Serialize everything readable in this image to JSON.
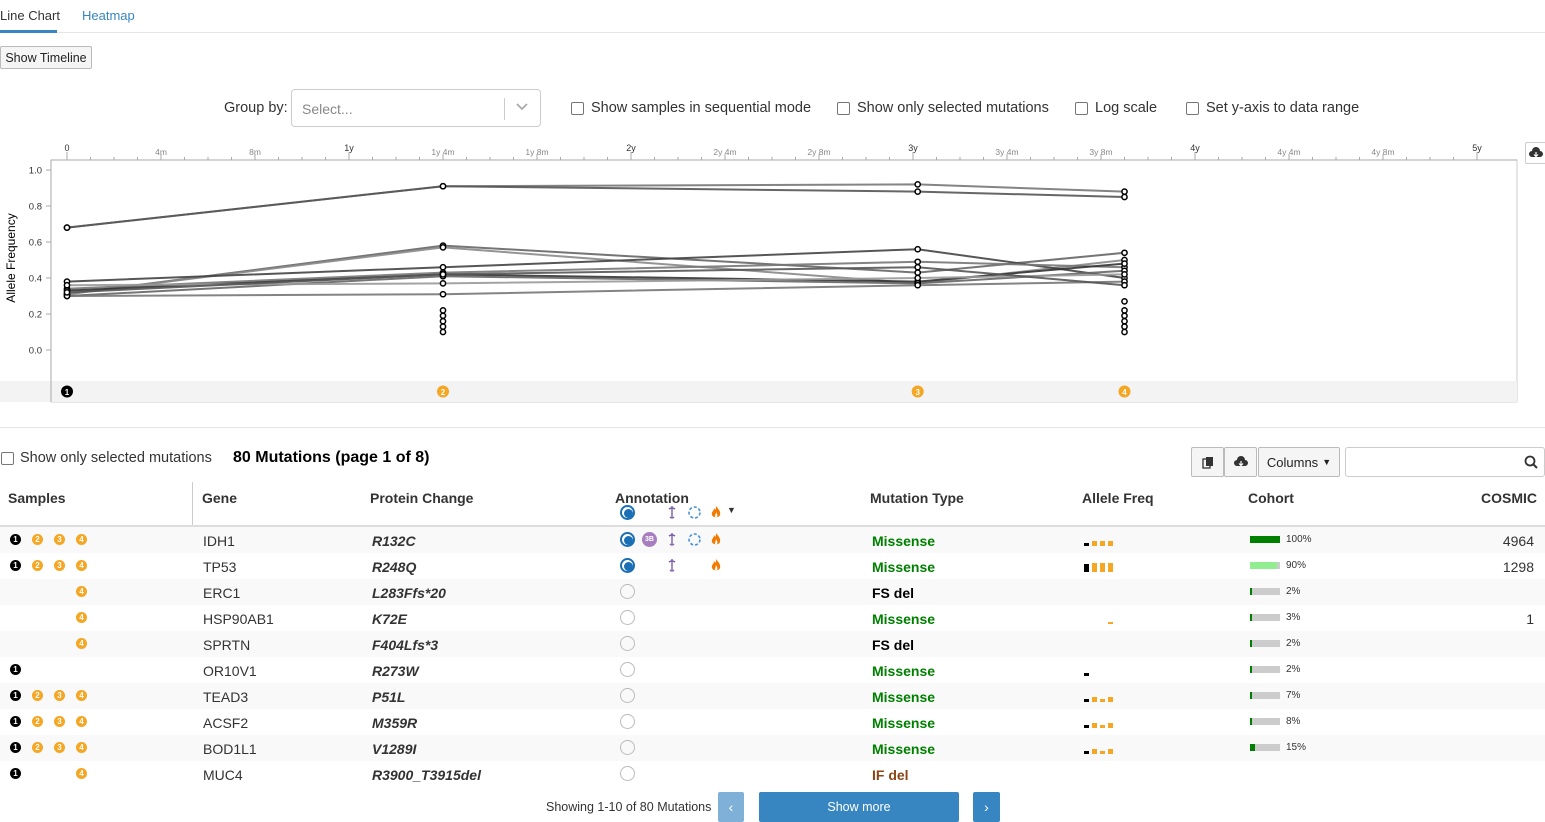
{
  "tabs": {
    "line_chart": "Line Chart",
    "heatmap": "Heatmap"
  },
  "toolbar": {
    "show_timeline": "Show Timeline"
  },
  "controls": {
    "group_by_label": "Group by:",
    "group_by_placeholder": "Select...",
    "sequential": "Show samples in sequential mode",
    "selected_only": "Show only selected mutations",
    "log_scale": "Log scale",
    "y_range": "Set y-axis to data range"
  },
  "chart_data": {
    "type": "line",
    "ylabel": "Allele Frequency",
    "ylim": [
      0,
      1.0
    ],
    "y_ticks": [
      "1.0",
      "0.8",
      "0.6",
      "0.4",
      "0.2",
      "0.0"
    ],
    "x_major_ticks": [
      "0",
      "1y",
      "2y",
      "3y",
      "4y",
      "5y"
    ],
    "x_minor_ticks": [
      "4m",
      "8m",
      "1y 4m",
      "1y 8m",
      "2y 4m",
      "2y 8m",
      "3y 4m",
      "3y 8m",
      "4y 4m",
      "4y 8m"
    ],
    "sample_markers": [
      "1",
      "2",
      "3",
      "4"
    ],
    "sample_x_months": [
      0,
      16,
      36.2,
      45
    ],
    "series": [
      {
        "values": [
          0.68,
          0.91,
          0.92,
          0.88
        ]
      },
      {
        "values": [
          0.68,
          0.91,
          0.88,
          0.85
        ]
      },
      {
        "values": [
          0.31,
          0.58,
          0.43,
          0.54
        ]
      },
      {
        "values": [
          0.31,
          0.57,
          0.37,
          0.5
        ]
      },
      {
        "values": [
          0.38,
          0.46,
          0.56,
          0.4
        ]
      },
      {
        "values": [
          0.34,
          0.43,
          0.49,
          0.46
        ]
      },
      {
        "values": [
          0.33,
          0.42,
          0.38,
          0.48
        ]
      },
      {
        "values": [
          0.3,
          0.41,
          0.37,
          0.44
        ]
      },
      {
        "values": [
          0.36,
          0.37,
          0.4,
          0.42
        ]
      },
      {
        "values": [
          0.3,
          0.31,
          0.36,
          0.38
        ]
      },
      {
        "values": [
          0.32,
          0.42,
          0.46,
          0.36
        ]
      }
    ],
    "extra_points": [
      {
        "sample": 2,
        "values": [
          0.22,
          0.19,
          0.16,
          0.13,
          0.1
        ]
      },
      {
        "sample": 4,
        "values": [
          0.27,
          0.22,
          0.19,
          0.16,
          0.13,
          0.1
        ]
      }
    ]
  },
  "table": {
    "show_selected": "Show only selected mutations",
    "title": "80 Mutations (page 1 of 8)",
    "columns_btn": "Columns",
    "headers": {
      "samples": "Samples",
      "gene": "Gene",
      "protein": "Protein Change",
      "annotation": "Annotation",
      "mut_type": "Mutation Type",
      "allele_freq": "Allele Freq",
      "cohort": "Cohort",
      "cosmic": "COSMIC"
    },
    "rows": [
      {
        "samples": [
          1,
          2,
          3,
          4
        ],
        "gene": "IDH1",
        "protein": "R132C",
        "annot": "full3b",
        "type": "Missense",
        "type_color": "#008000",
        "af": [
          0.3,
          0.5,
          0.5,
          0.5
        ],
        "cohort": "100%",
        "cohort_frac": 1.0,
        "cohort_color": "#008000",
        "cosmic": "4964"
      },
      {
        "samples": [
          1,
          2,
          3,
          4
        ],
        "gene": "TP53",
        "protein": "R248Q",
        "annot": "full",
        "type": "Missense",
        "type_color": "#008000",
        "af": [
          0.8,
          0.9,
          0.9,
          0.9
        ],
        "cohort": "90%",
        "cohort_frac": 0.9,
        "cohort_color": "#90ee90",
        "cosmic": "1298"
      },
      {
        "samples": [
          4
        ],
        "gene": "ERC1",
        "protein": "L283Ffs*20",
        "annot": "empty",
        "type": "FS del",
        "type_color": "#000000",
        "af": [],
        "cohort": "2%",
        "cohort_frac": 0.02,
        "cohort_color": "#008000",
        "cosmic": ""
      },
      {
        "samples": [
          4
        ],
        "gene": "HSP90AB1",
        "protein": "K72E",
        "annot": "empty",
        "type": "Missense",
        "type_color": "#008000",
        "af": [
          0,
          0,
          0,
          0.1
        ],
        "cohort": "3%",
        "cohort_frac": 0.03,
        "cohort_color": "#008000",
        "cosmic": "1"
      },
      {
        "samples": [
          4
        ],
        "gene": "SPRTN",
        "protein": "F404Lfs*3",
        "annot": "empty",
        "type": "FS del",
        "type_color": "#000000",
        "af": [],
        "cohort": "2%",
        "cohort_frac": 0.02,
        "cohort_color": "#008000",
        "cosmic": ""
      },
      {
        "samples": [
          1
        ],
        "gene": "OR10V1",
        "protein": "R273W",
        "annot": "empty",
        "type": "Missense",
        "type_color": "#008000",
        "af": [
          0.3
        ],
        "cohort": "2%",
        "cohort_frac": 0.02,
        "cohort_color": "#008000",
        "cosmic": ""
      },
      {
        "samples": [
          1,
          2,
          3,
          4
        ],
        "gene": "TEAD3",
        "protein": "P51L",
        "annot": "empty",
        "type": "Missense",
        "type_color": "#008000",
        "af": [
          0.3,
          0.5,
          0.3,
          0.5
        ],
        "cohort": "7%",
        "cohort_frac": 0.07,
        "cohort_color": "#008000",
        "cosmic": ""
      },
      {
        "samples": [
          1,
          2,
          3,
          4
        ],
        "gene": "ACSF2",
        "protein": "M359R",
        "annot": "empty",
        "type": "Missense",
        "type_color": "#008000",
        "af": [
          0.3,
          0.5,
          0.3,
          0.5
        ],
        "cohort": "8%",
        "cohort_frac": 0.08,
        "cohort_color": "#008000",
        "cosmic": ""
      },
      {
        "samples": [
          1,
          2,
          3,
          4
        ],
        "gene": "BOD1L1",
        "protein": "V1289I",
        "annot": "empty",
        "type": "Missense",
        "type_color": "#008000",
        "af": [
          0.3,
          0.5,
          0.3,
          0.5
        ],
        "cohort": "15%",
        "cohort_frac": 0.15,
        "cohort_color": "#008000",
        "cosmic": ""
      },
      {
        "samples": [
          1,
          4
        ],
        "gene": "MUC4",
        "protein": "R3900_T3915del",
        "annot": "empty",
        "type": "IF del",
        "type_color": "#8b4513",
        "af": [],
        "cohort": "",
        "cohort_frac": 0,
        "cohort_color": "#008000",
        "cosmic": ""
      }
    ],
    "footer": {
      "showing": "Showing 1-10 of 80 Mutations",
      "show_more": "Show more",
      "prev": "‹",
      "next": "›"
    }
  }
}
